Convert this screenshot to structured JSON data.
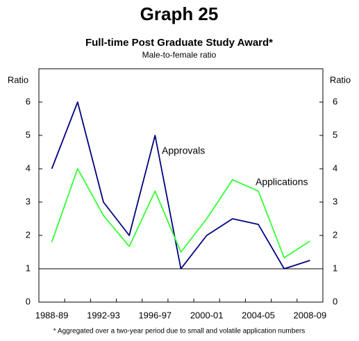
{
  "chart_data": {
    "type": "line",
    "title": "Graph 25",
    "subtitle": "Full-time Post Graduate Study Award*",
    "note": "Male-to-female ratio",
    "y_label": "Ratio",
    "y2_label": "Ratio",
    "footnote": "* Aggregated over a two-year period due to small and volatile application numbers",
    "categories": [
      "1988-89",
      null,
      "1992-93",
      null,
      "1996-97",
      null,
      "2000-01",
      null,
      "2004-05",
      null,
      "2008-09"
    ],
    "series": [
      {
        "name": "Approvals",
        "color": "#000080",
        "values": [
          4,
          6,
          3,
          2,
          5,
          1,
          2,
          2.5,
          2.33,
          1,
          1.25
        ]
      },
      {
        "name": "Applications",
        "color": "#33ff33",
        "values": [
          1.8,
          4,
          2.6,
          1.67,
          3.33,
          1.5,
          2.5,
          3.67,
          3.33,
          1.33,
          1.83
        ]
      }
    ],
    "ylim": [
      0,
      7
    ],
    "yticks": [
      0,
      1,
      2,
      3,
      4,
      5,
      6
    ],
    "y2lim": [
      0,
      7
    ],
    "y2ticks": [
      0,
      1,
      2,
      3,
      4,
      5,
      6
    ],
    "reference_line": 1
  }
}
